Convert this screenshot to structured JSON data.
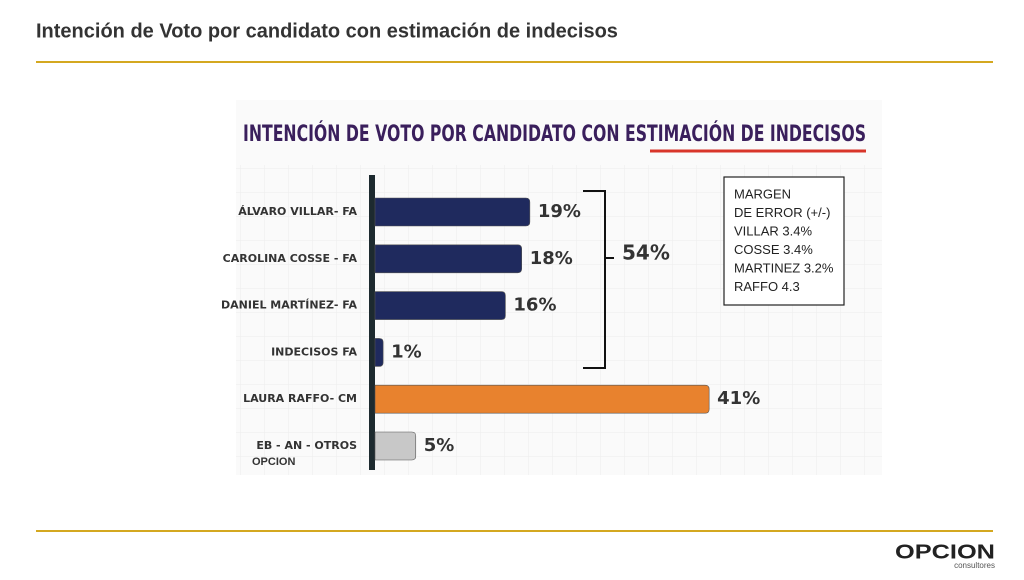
{
  "slide_title": "Intención de Voto por candidato con estimación de indecisos",
  "chart_data": {
    "type": "bar",
    "orientation": "horizontal",
    "title": "INTENCIÓN DE VOTO POR CANDIDATO CON ESTIMACIÓN DE INDECISOS",
    "categories": [
      "ÁLVARO VILLAR- FA",
      "CAROLINA COSSE - FA",
      "DANIEL MARTÍNEZ- FA",
      "INDECISOS FA",
      "LAURA RAFFO- CM",
      "EB - AN - OTROS"
    ],
    "values": [
      19,
      18,
      16,
      1,
      41,
      5
    ],
    "value_labels": [
      "19%",
      "18%",
      "16%",
      "1%",
      "41%",
      "5%"
    ],
    "colors": [
      "#1f2a5e",
      "#1f2a5e",
      "#1f2a5e",
      "#1f2a5e",
      "#e8822e",
      "#c8c8c8"
    ],
    "bracket_label": "54%",
    "margin_box": [
      "MARGEN",
      "DE ERROR (+/-)",
      "VILLAR 3.4%",
      "COSSE 3.4%",
      "MARTINEZ 3.2%",
      "RAFFO 4.3"
    ]
  },
  "logo": {
    "name": "OPCION",
    "tagline": "consultores"
  }
}
